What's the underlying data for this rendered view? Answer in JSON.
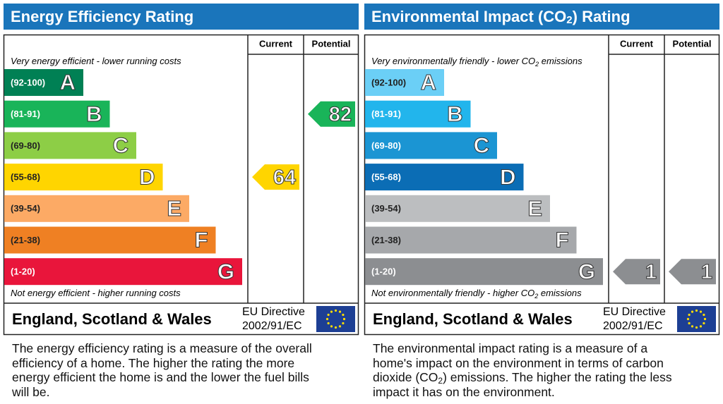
{
  "panels": [
    {
      "title": {
        "text": "Energy Efficiency Rating"
      },
      "col_current": "Current",
      "col_potential": "Potential",
      "top_note": {
        "text": "Very energy efficient - lower running costs"
      },
      "bottom_note": {
        "text": "Not energy efficient - higher running costs"
      },
      "bands": [
        {
          "range": "(92-100)",
          "letter": "A",
          "color": "#008054"
        },
        {
          "range": "(81-91)",
          "letter": "B",
          "color": "#19b459"
        },
        {
          "range": "(69-80)",
          "letter": "C",
          "color": "#8dce46"
        },
        {
          "range": "(55-68)",
          "letter": "D",
          "color": "#ffd500"
        },
        {
          "range": "(39-54)",
          "letter": "E",
          "color": "#fcaa65"
        },
        {
          "range": "(21-38)",
          "letter": "F",
          "color": "#ef8023"
        },
        {
          "range": "(1-20)",
          "letter": "G",
          "color": "#e9153b"
        }
      ],
      "current": 64,
      "potential": 82,
      "region": "England, Scotland & Wales",
      "directive": [
        "EU Directive",
        "2002/91/EC"
      ],
      "description": {
        "text": "The energy efficiency rating is a measure of the overall efficiency of a home. The higher the rating the more energy efficient the home is and the lower the fuel bills will be."
      }
    },
    {
      "title": {
        "text": "Environmental Impact (CO",
        "sub": "2",
        "after": ") Rating"
      },
      "col_current": "Current",
      "col_potential": "Potential",
      "top_note": {
        "text": "Very environmentally friendly - lower CO",
        "sub": "2",
        "after": " emissions"
      },
      "bottom_note": {
        "text": "Not environmentally friendly - higher CO",
        "sub": "2",
        "after": " emissions"
      },
      "bands": [
        {
          "range": "(92-100)",
          "letter": "A",
          "color": "#6bcff6"
        },
        {
          "range": "(81-91)",
          "letter": "B",
          "color": "#22b5ec"
        },
        {
          "range": "(69-80)",
          "letter": "C",
          "color": "#1b95d3"
        },
        {
          "range": "(55-68)",
          "letter": "D",
          "color": "#0b6db5"
        },
        {
          "range": "(39-54)",
          "letter": "E",
          "color": "#bcbec0"
        },
        {
          "range": "(21-38)",
          "letter": "F",
          "color": "#a6a8ab"
        },
        {
          "range": "(1-20)",
          "letter": "G",
          "color": "#8c8e91"
        }
      ],
      "current": 1,
      "potential": 1,
      "region": "England, Scotland & Wales",
      "directive": [
        "EU Directive",
        "2002/91/EC"
      ],
      "description": {
        "text": "The environmental impact rating is a measure of a home's impact on the environment in terms of carbon dioxide (CO",
        "sub": "2",
        "after": ") emissions. The higher the rating the less impact it has on the environment."
      }
    }
  ]
}
